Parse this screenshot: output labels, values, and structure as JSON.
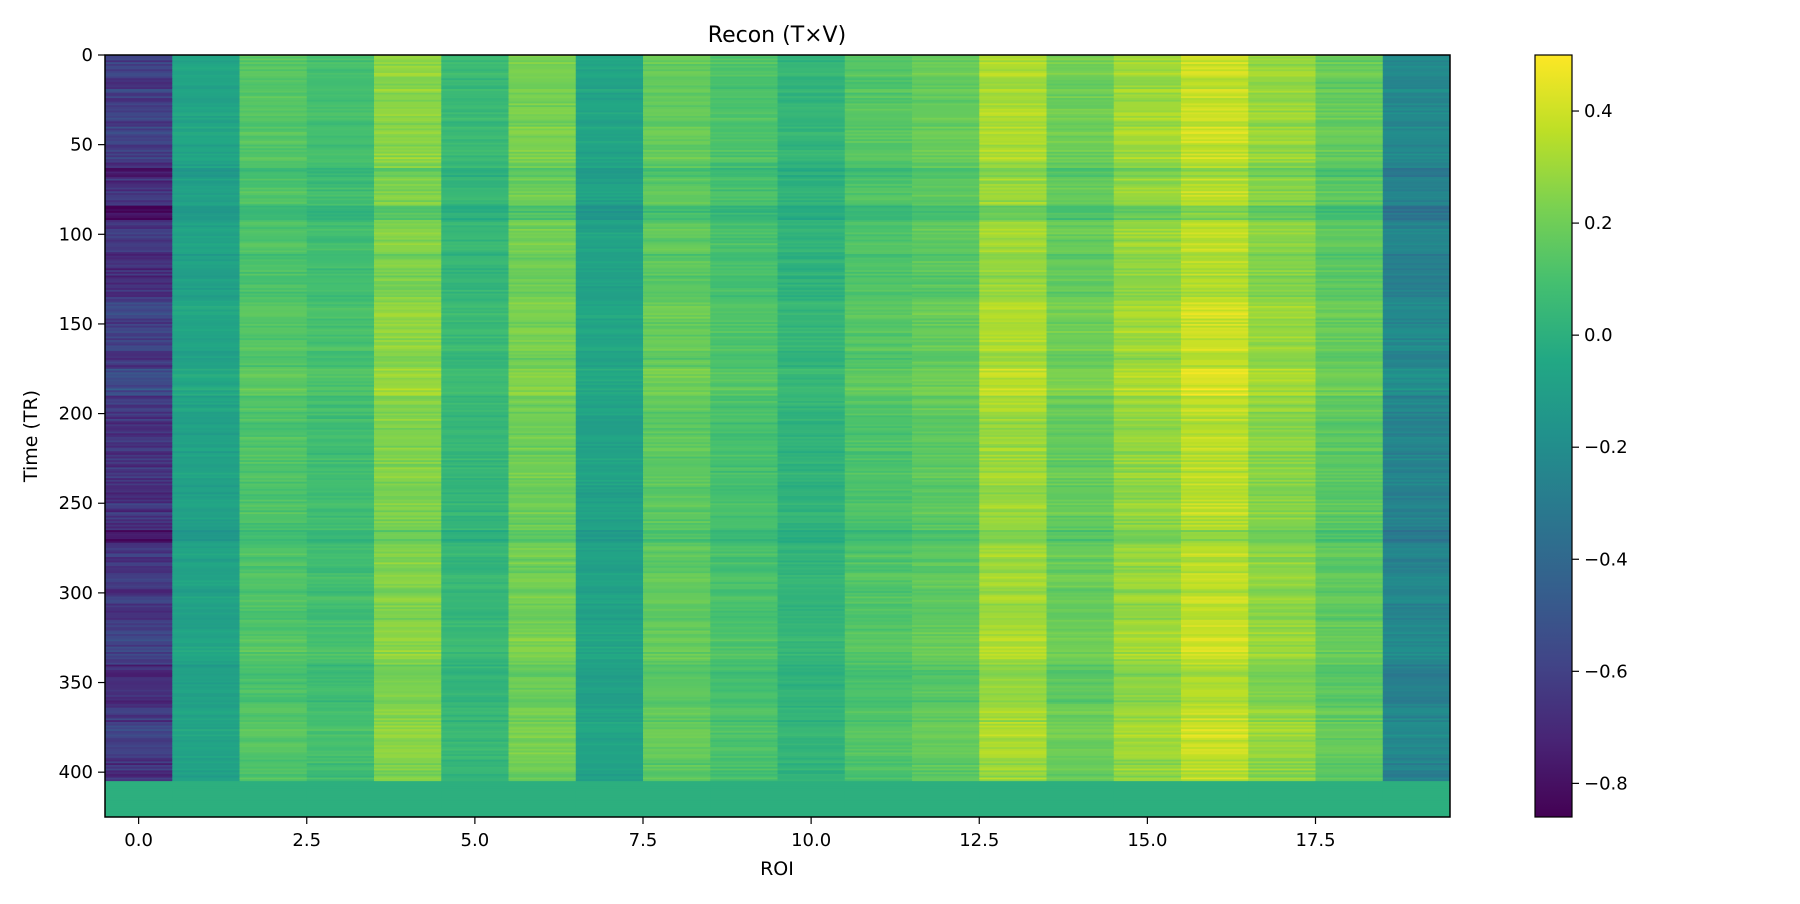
{
  "chart_data": {
    "type": "heatmap",
    "title": "Recon (T×V)",
    "xlabel": "ROI",
    "ylabel": "Time (TR)",
    "x_ticks": [
      "0.0",
      "2.5",
      "5.0",
      "7.5",
      "10.0",
      "12.5",
      "15.0",
      "17.5"
    ],
    "x_tick_values": [
      0,
      2.5,
      5,
      7.5,
      10,
      12.5,
      15,
      17.5
    ],
    "y_ticks": [
      "0",
      "50",
      "100",
      "150",
      "200",
      "250",
      "300",
      "350",
      "400"
    ],
    "y_tick_values": [
      0,
      50,
      100,
      150,
      200,
      250,
      300,
      350,
      400
    ],
    "xlim": [
      -0.5,
      19.5
    ],
    "ylim": [
      425,
      0
    ],
    "n_rows": 425,
    "n_cols": 20,
    "data_end_row": 405,
    "padding_value": 0.0,
    "column_means": [
      -0.65,
      -0.08,
      0.12,
      0.08,
      0.24,
      0.04,
      0.2,
      -0.08,
      0.16,
      0.1,
      0.02,
      0.12,
      0.16,
      0.3,
      0.18,
      0.28,
      0.36,
      0.26,
      0.16,
      -0.25
    ],
    "row_modulation_bands": [
      {
        "rows": [
          0,
          60
        ],
        "shift": 0.04
      },
      {
        "rows": [
          63,
          68
        ],
        "shift": -0.1
      },
      {
        "rows": [
          84,
          92
        ],
        "shift": -0.15
      },
      {
        "rows": [
          110,
          135
        ],
        "shift": -0.04
      },
      {
        "rows": [
          135,
          165
        ],
        "shift": 0.04
      },
      {
        "rows": [
          175,
          190
        ],
        "shift": 0.1
      },
      {
        "rows": [
          265,
          272
        ],
        "shift": -0.12
      },
      {
        "rows": [
          315,
          335
        ],
        "shift": 0.05
      },
      {
        "rows": [
          340,
          362
        ],
        "shift": -0.04
      },
      {
        "rows": [
          372,
          388
        ],
        "shift": 0.04
      }
    ],
    "colormap": "viridis",
    "colorbar": {
      "min": -0.86,
      "max": 0.5,
      "ticks": [
        "0.4",
        "0.2",
        "0.0",
        "−0.2",
        "−0.4",
        "−0.6",
        "−0.8"
      ],
      "tick_values": [
        0.4,
        0.2,
        0.0,
        -0.2,
        -0.4,
        -0.6,
        -0.8
      ]
    }
  }
}
